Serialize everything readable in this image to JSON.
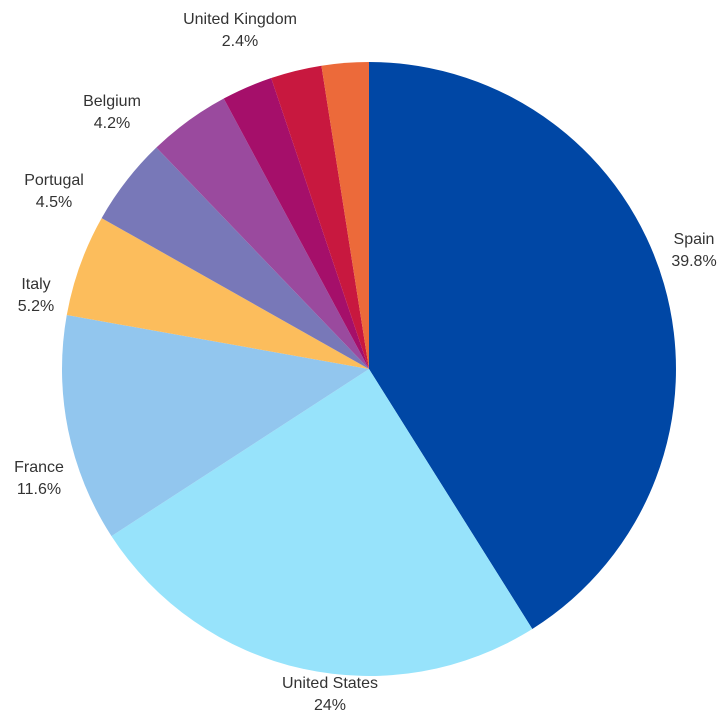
{
  "chart_data": {
    "type": "pie",
    "title": "",
    "start": "top",
    "direction": "clockwise",
    "legend": "none",
    "slices": [
      {
        "label": "Spain",
        "value_label": "39.8%",
        "value": 39.8,
        "color": "#0047A5"
      },
      {
        "label": "United States",
        "value_label": "24%",
        "value": 24.0,
        "color": "#97E3FB"
      },
      {
        "label": "France",
        "value_label": "11.6%",
        "value": 11.6,
        "color": "#92C6EE"
      },
      {
        "label": "Italy",
        "value_label": "5.2%",
        "value": 5.2,
        "color": "#FCBD5C"
      },
      {
        "label": "Portugal",
        "value_label": "4.5%",
        "value": 4.5,
        "color": "#7878B8"
      },
      {
        "label": "Belgium",
        "value_label": "4.2%",
        "value": 4.2,
        "color": "#9A4A9E"
      },
      {
        "label": "",
        "value_label": "",
        "value": 2.6,
        "color": "#A50F6A"
      },
      {
        "label": "",
        "value_label": "",
        "value": 2.6,
        "color": "#C8183F"
      },
      {
        "label": "United Kingdom",
        "value_label": "2.4%",
        "value": 2.4,
        "color": "#EC6A3A"
      }
    ]
  }
}
